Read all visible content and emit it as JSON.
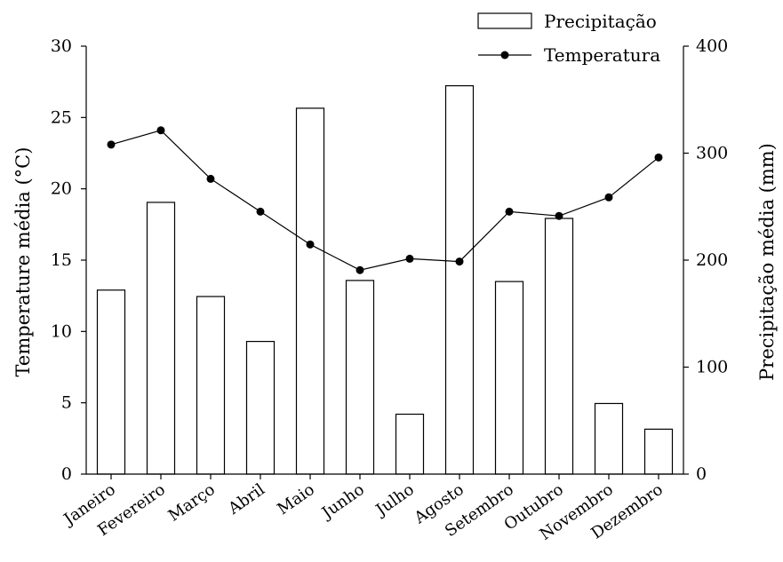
{
  "chart_data": {
    "type": "bar",
    "categories": [
      "Janeiro",
      "Fevereiro",
      "Março",
      "Abril",
      "Maio",
      "Junho",
      "Julho",
      "Agosto",
      "Setembro",
      "Outubro",
      "Novembro",
      "Dezembro"
    ],
    "series": [
      {
        "name": "Precipitação",
        "type": "bar",
        "axis": "right",
        "values": [
          172,
          254,
          166,
          124,
          342,
          181,
          56,
          363,
          180,
          239,
          66,
          42
        ]
      },
      {
        "name": "Temperatura",
        "type": "line",
        "axis": "left",
        "values": [
          23.1,
          24.1,
          20.7,
          18.4,
          16.1,
          14.3,
          15.1,
          14.9,
          18.4,
          18.1,
          19.4,
          22.2
        ]
      }
    ],
    "ylabel": "Temperature média (°C)",
    "ylabel_right": "Precipitação média (mm)",
    "ylim": [
      0,
      30
    ],
    "ylim_right": [
      0,
      400
    ],
    "yticks": [
      "0",
      "5",
      "10",
      "15",
      "20",
      "25",
      "30"
    ],
    "yticks_right": [
      "0",
      "100",
      "200",
      "300",
      "400"
    ],
    "legend": {
      "position": "top-right"
    },
    "grid": false,
    "colors": {
      "bar_fill": "#ffffff",
      "stroke": "#000000"
    }
  }
}
